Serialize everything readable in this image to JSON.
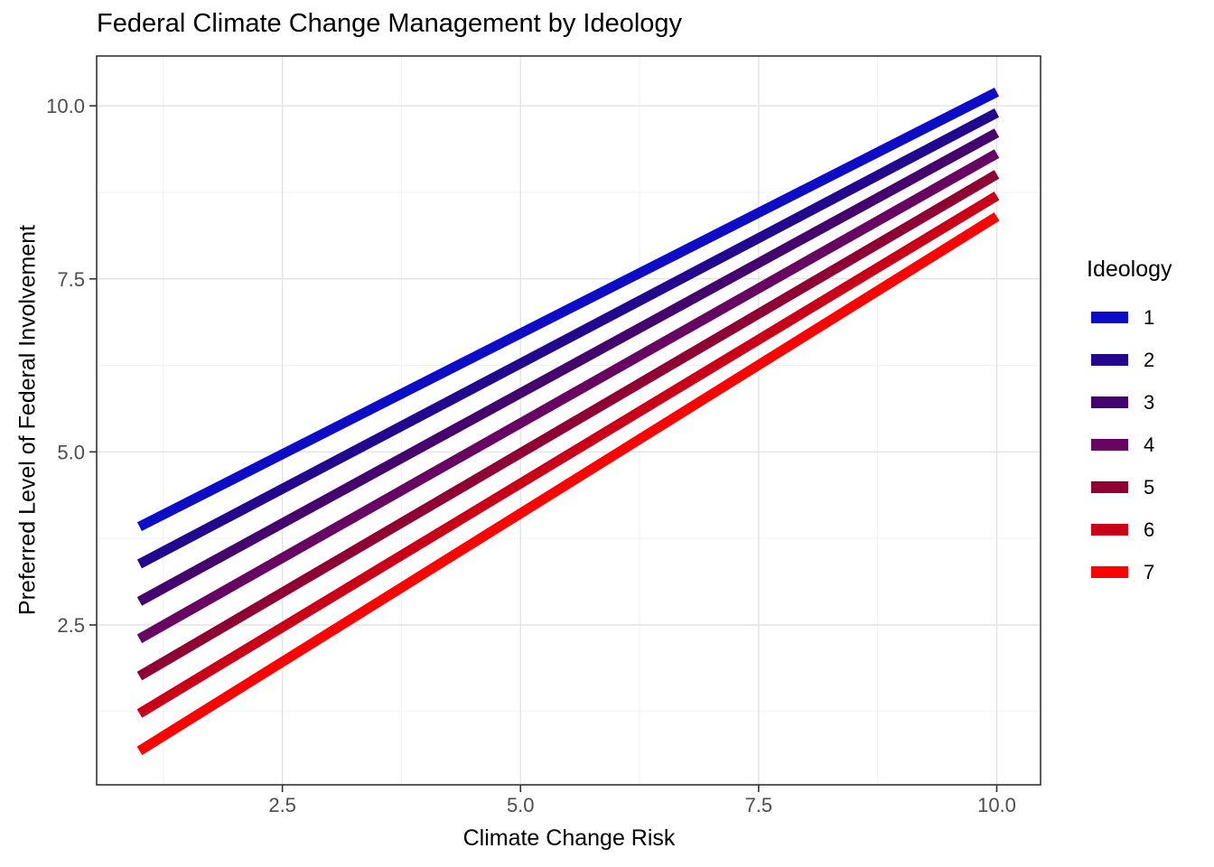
{
  "chart_data": {
    "type": "line",
    "title": "Federal Climate Change Management by Ideology",
    "xlabel": "Climate Change Risk",
    "ylabel": "Preferred Level of Federal Involvement",
    "legend_title": "Ideology",
    "legend_position": "right",
    "grid": true,
    "xlim": [
      0.55,
      10.46
    ],
    "ylim": [
      0.19,
      10.72
    ],
    "x_ticks": [
      2.5,
      5.0,
      7.5,
      10.0
    ],
    "y_ticks": [
      2.5,
      5.0,
      7.5,
      10.0
    ],
    "x_tick_labels": [
      "2.5",
      "5.0",
      "7.5",
      "10.0"
    ],
    "y_tick_labels": [
      "2.5",
      "5.0",
      "7.5",
      "10.0"
    ],
    "x_minor_ticks": [
      1.25,
      3.75,
      6.25,
      8.75
    ],
    "y_minor_ticks": [
      1.25,
      3.75,
      6.25,
      8.75
    ],
    "x": [
      1,
      10
    ],
    "series": [
      {
        "name": "1",
        "color": "#0D0DC8",
        "values": [
          3.92,
          10.2
        ]
      },
      {
        "name": "2",
        "color": "#23078F",
        "values": [
          3.38,
          9.9
        ]
      },
      {
        "name": "3",
        "color": "#45036E",
        "values": [
          2.84,
          9.61
        ]
      },
      {
        "name": "4",
        "color": "#680563",
        "values": [
          2.3,
          9.31
        ]
      },
      {
        "name": "5",
        "color": "#8F0132",
        "values": [
          1.76,
          9.01
        ]
      },
      {
        "name": "6",
        "color": "#C90017",
        "values": [
          1.22,
          8.7
        ]
      },
      {
        "name": "7",
        "color": "#FB0303",
        "values": [
          0.68,
          8.4
        ]
      }
    ],
    "style_colors": {
      "grid_major": "#E4E4E4",
      "grid_minor": "#F0F0F0",
      "panel_border": "#333333",
      "tick": "#333333",
      "tick_label": "#4D4D4D"
    }
  }
}
